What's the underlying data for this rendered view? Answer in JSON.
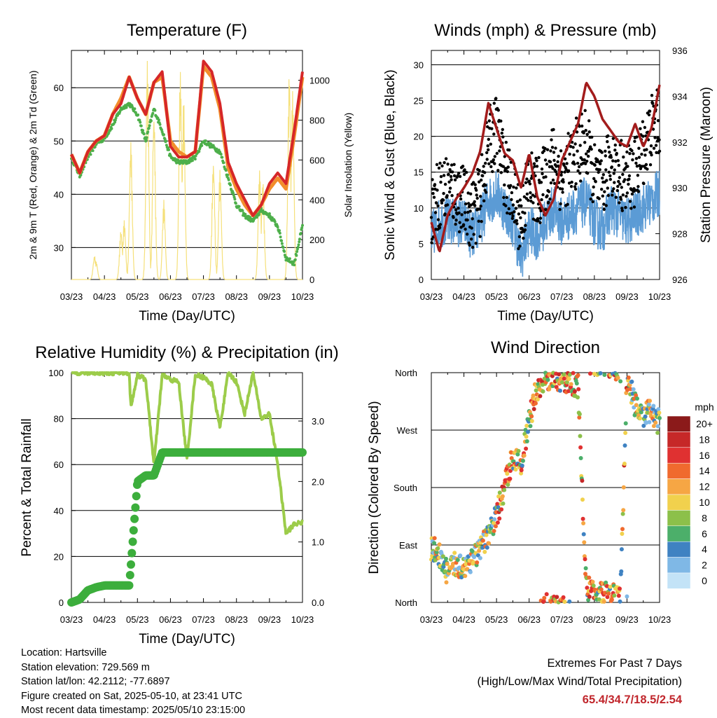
{
  "footer": {
    "location": "Location: Hartsville",
    "elevation": "Station elevation: 729.569 m",
    "latlon": "Station lat/lon: 42.2112; -77.6897",
    "created": "Figure created on Sat, 2025-05-10, at 23:41 UTC",
    "recent": "Most recent data timestamp: 2025/05/10 23:15:00"
  },
  "extremes": {
    "title": "Extremes For Past 7 Days",
    "subtitle": "(High/Low/Max Wind/Total Precipitation)",
    "values": "65.4/34.7/18.5/2.54"
  },
  "colors": {
    "temp_2m": "#d62728",
    "temp_9m": "#f28e2b",
    "dewpoint": "#4daf4a",
    "solar": "#f5e07a",
    "wind": "#5b9bd5",
    "gust": "#000000",
    "pressure": "#a31c1c",
    "rh": "#9ccc4a",
    "precip": "#3cae3c"
  },
  "x_ticks": [
    "03/23",
    "04/23",
    "05/23",
    "06/23",
    "07/23",
    "08/23",
    "09/23",
    "10/23"
  ],
  "chart_data": [
    {
      "type": "line",
      "title": "Temperature (F)",
      "xlabel": "Time (Day/UTC)",
      "ylabel": "2m & 9m T (Red, Orange) & 2m Td (Green)",
      "ylabel_right": "Solar Insolation (Yellow)",
      "ylim": [
        24,
        67
      ],
      "yticks": [
        30,
        40,
        50,
        60
      ],
      "ylim_right": [
        0,
        1150
      ],
      "yticks_right": [
        0,
        200,
        400,
        600,
        800,
        1000
      ],
      "x": [
        0,
        0.25,
        0.5,
        0.75,
        1,
        1.25,
        1.5,
        1.75,
        2,
        2.25,
        2.5,
        2.75,
        3,
        3.25,
        3.5,
        3.75,
        4,
        4.25,
        4.5,
        4.75,
        5,
        5.25,
        5.5,
        5.75,
        6,
        6.25,
        6.5,
        6.75,
        7
      ],
      "series": [
        {
          "name": "2m T",
          "values": [
            47.5,
            44,
            48,
            50,
            51,
            55,
            57,
            62,
            58,
            55,
            61,
            63,
            49,
            47,
            47,
            48,
            65,
            63,
            57,
            46,
            42,
            39,
            36,
            38,
            42,
            44,
            42,
            52,
            63
          ]
        },
        {
          "name": "9m T",
          "values": [
            47.5,
            44,
            48,
            50,
            51,
            55,
            58,
            62,
            58,
            55,
            61,
            62,
            50,
            48,
            47,
            48,
            64,
            62,
            56,
            45,
            41,
            38,
            36,
            38,
            41,
            43,
            41,
            51,
            62
          ]
        },
        {
          "name": "2m Td",
          "values": [
            47,
            43.5,
            47,
            49.5,
            50.5,
            53,
            56,
            57,
            55,
            50,
            56,
            52,
            47,
            46,
            46,
            47,
            50,
            49,
            48,
            43,
            38,
            36,
            35,
            37,
            36,
            34,
            28,
            27,
            34
          ]
        },
        {
          "name": "Solar",
          "values": [
            0,
            0,
            0,
            0,
            300,
            0,
            0,
            1000,
            0,
            0,
            1100,
            0,
            0,
            0,
            0,
            0,
            1050,
            0,
            600,
            0,
            0,
            0,
            0,
            0,
            550,
            0,
            0,
            1050,
            0
          ]
        }
      ]
    },
    {
      "type": "line",
      "title": "Winds (mph) & Pressure (mb)",
      "xlabel": "Time (Day/UTC)",
      "ylabel": "Sonic Wind & Gust (Blue, Black)",
      "ylabel_right": "Station Pressure (Maroon)",
      "ylim": [
        0,
        32
      ],
      "yticks": [
        0,
        5,
        10,
        15,
        20,
        25,
        30
      ],
      "ylim_right": [
        926,
        936
      ],
      "yticks_right": [
        926,
        928,
        930,
        932,
        934,
        936
      ],
      "x": [
        0,
        0.25,
        0.5,
        0.75,
        1,
        1.25,
        1.5,
        1.75,
        2,
        2.25,
        2.5,
        2.75,
        3,
        3.25,
        3.5,
        3.75,
        4,
        4.25,
        4.5,
        4.75,
        5,
        5.25,
        5.5,
        5.75,
        6,
        6.25,
        6.5,
        6.75,
        7
      ],
      "series": [
        {
          "name": "Wind",
          "values": [
            6,
            8,
            8,
            8,
            8,
            6,
            8,
            11,
            12,
            10,
            8,
            3,
            7,
            6,
            8,
            10,
            8,
            9,
            10,
            11,
            8,
            7,
            10,
            9,
            8,
            9,
            10,
            11,
            12
          ]
        },
        {
          "name": "Gust",
          "values": [
            10,
            12,
            13,
            12,
            11,
            9,
            11,
            19,
            21,
            15,
            12,
            8,
            14,
            12,
            14,
            17,
            14,
            16,
            18,
            19,
            14,
            13,
            17,
            15,
            14,
            15,
            18,
            21,
            22
          ]
        },
        {
          "name": "Pressure",
          "values": [
            928.5,
            927.2,
            928.8,
            929.5,
            930,
            930.6,
            931.6,
            933.7,
            932.6,
            931.5,
            931.2,
            930,
            931.5,
            929.6,
            928.8,
            929.5,
            931.2,
            932,
            932.8,
            934.6,
            934,
            933,
            932.5,
            932,
            931.8,
            932.8,
            931.8,
            932.6,
            934.5
          ]
        }
      ]
    },
    {
      "type": "line",
      "title": "Relative Humidity (%) & Precipitation (in)",
      "xlabel": "Time (Day/UTC)",
      "ylabel": "Percent & Total Rainfall",
      "ylim": [
        0,
        100
      ],
      "yticks": [
        0,
        20,
        40,
        60,
        80,
        100
      ],
      "ylim_right": [
        0,
        3.8
      ],
      "yticks_right": [
        0.0,
        1.0,
        2.0,
        3.0
      ],
      "x": [
        0,
        0.25,
        0.5,
        0.75,
        1,
        1.25,
        1.5,
        1.75,
        1.8,
        2,
        2.25,
        2.5,
        2.75,
        3,
        3.25,
        3.5,
        3.75,
        4,
        4.25,
        4.5,
        4.75,
        5,
        5.25,
        5.5,
        5.75,
        6,
        6.25,
        6.5,
        6.75,
        7
      ],
      "series": [
        {
          "name": "RH",
          "values": [
            100,
            100,
            100,
            100,
            100,
            100,
            100,
            100,
            85,
            99,
            97,
            60,
            99,
            97,
            96,
            62,
            99,
            98,
            95,
            76,
            100,
            96,
            82,
            100,
            80,
            82,
            60,
            30,
            34,
            35
          ]
        },
        {
          "name": "Precip",
          "values": [
            0,
            0.05,
            0.2,
            0.25,
            0.28,
            0.28,
            0.28,
            0.28,
            0.6,
            2.0,
            2.1,
            2.1,
            2.48,
            2.48,
            2.48,
            2.48,
            2.48,
            2.48,
            2.48,
            2.48,
            2.48,
            2.48,
            2.48,
            2.48,
            2.48,
            2.48,
            2.48,
            2.48,
            2.48,
            2.48
          ]
        }
      ]
    },
    {
      "type": "scatter",
      "title": "Wind Direction",
      "xlabel": "Time (Day/UTC)",
      "ylabel": "Direction (Colored By Speed)",
      "yticks": [
        "North",
        "East",
        "South",
        "West",
        "North"
      ],
      "legend_title": "mph",
      "legend_labels": [
        "20+",
        "18",
        "16",
        "14",
        "12",
        "10",
        "8",
        "6",
        "4",
        "2",
        "0"
      ],
      "legend_colors": [
        "#8b1a1a",
        "#c62828",
        "#e03131",
        "#f06a2e",
        "#f6a644",
        "#f1d14d",
        "#8cc04a",
        "#4caf6a",
        "#3f82c2",
        "#7fb8e6",
        "#c3e3f7"
      ],
      "x": [
        0,
        0.2,
        0.5,
        0.75,
        1,
        1.25,
        1.5,
        1.75,
        2,
        2.25,
        2.5,
        2.75,
        3,
        3.2,
        3.5,
        3.75,
        4,
        4.25,
        4.5,
        4.75,
        5.5,
        5.8,
        6,
        6.25,
        6.5,
        6.75,
        7
      ],
      "values": [
        85,
        80,
        45,
        60,
        55,
        70,
        80,
        105,
        135,
        180,
        230,
        220,
        280,
        330,
        355,
        350,
        350,
        345,
        340,
        20,
        10,
        5,
        355,
        310,
        290,
        300,
        280
      ]
    }
  ]
}
